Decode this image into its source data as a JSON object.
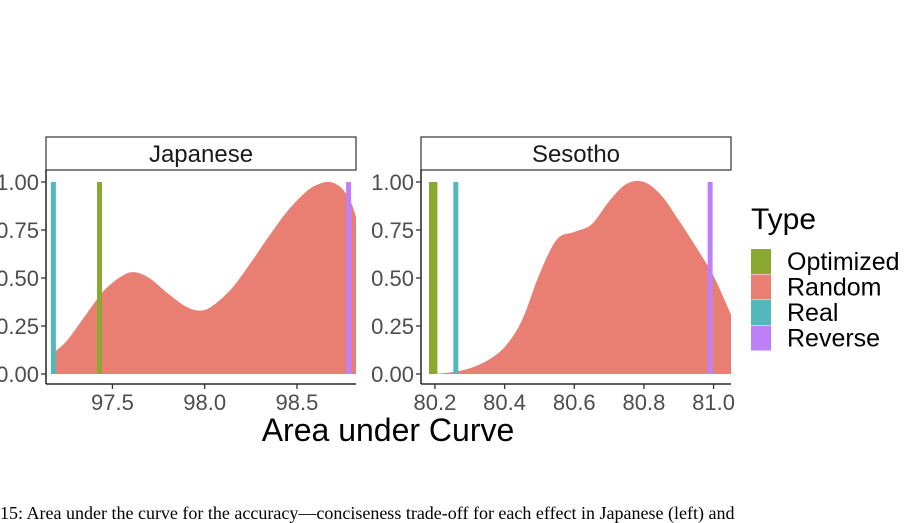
{
  "chart_data": [
    {
      "type": "area",
      "facet": "Japanese",
      "xlim": [
        97.14,
        98.82
      ],
      "ylim": [
        0,
        1
      ],
      "x_ticks": [
        97.5,
        98.0,
        98.5
      ],
      "x_tick_labels": [
        "97.5",
        "98.0",
        "98.5"
      ],
      "y_ticks": [
        0,
        0.25,
        0.5,
        0.75,
        1.0
      ],
      "y_tick_labels": [
        "0.00",
        "0.25",
        "0.50",
        "0.75",
        "1.00"
      ],
      "density": {
        "name": "Random",
        "x": [
          97.18,
          97.25,
          97.35,
          97.45,
          97.55,
          97.62,
          97.7,
          97.8,
          97.9,
          97.98,
          98.05,
          98.15,
          98.25,
          98.35,
          98.45,
          98.55,
          98.62,
          98.68,
          98.74,
          98.79,
          98.82
        ],
        "y": [
          0.11,
          0.17,
          0.3,
          0.43,
          0.51,
          0.53,
          0.5,
          0.42,
          0.35,
          0.33,
          0.36,
          0.45,
          0.58,
          0.72,
          0.85,
          0.95,
          0.99,
          1.0,
          0.97,
          0.9,
          0.82
        ]
      },
      "vlines": [
        {
          "type": "Real",
          "x": 97.18
        },
        {
          "type": "Optimized",
          "x": 97.43
        },
        {
          "type": "Reverse",
          "x": 98.78
        }
      ]
    },
    {
      "type": "area",
      "facet": "Sesotho",
      "xlim": [
        80.16,
        81.05
      ],
      "ylim": [
        0,
        1
      ],
      "x_ticks": [
        80.2,
        80.4,
        80.6,
        80.8,
        81.0
      ],
      "x_tick_labels": [
        "80.2",
        "80.4",
        "80.6",
        "80.8",
        "81.0"
      ],
      "y_ticks": [
        0,
        0.25,
        0.5,
        0.75,
        1.0
      ],
      "y_tick_labels": [
        "0.00",
        "0.25",
        "0.50",
        "0.75",
        "1.00"
      ],
      "density": {
        "name": "Random",
        "x": [
          80.2,
          80.25,
          80.3,
          80.35,
          80.4,
          80.45,
          80.5,
          80.55,
          80.6,
          80.65,
          80.7,
          80.75,
          80.8,
          80.85,
          80.9,
          80.95,
          81.0,
          81.05
        ],
        "y": [
          0.0,
          0.01,
          0.03,
          0.07,
          0.14,
          0.28,
          0.52,
          0.7,
          0.74,
          0.78,
          0.9,
          0.99,
          1.0,
          0.93,
          0.8,
          0.66,
          0.51,
          0.31
        ]
      },
      "vlines": [
        {
          "type": "Optimized",
          "x": 80.19
        },
        {
          "type": "Optimized",
          "x": 80.2
        },
        {
          "type": "Real",
          "x": 80.26
        },
        {
          "type": "Reverse",
          "x": 80.99
        }
      ]
    }
  ],
  "xlabel": "Area under Curve",
  "legend": {
    "title": "Type",
    "position": "right",
    "items": [
      {
        "label": "Optimized",
        "color": "#8BA832"
      },
      {
        "label": "Random",
        "color": "#E97E72"
      },
      {
        "label": "Real",
        "color": "#53B8BC"
      },
      {
        "label": "Reverse",
        "color": "#BE80F8"
      }
    ]
  },
  "colors": {
    "Optimized": "#8BA832",
    "Random": "#E97E72",
    "Real": "#53B8BC",
    "Reverse": "#BE80F8"
  },
  "caption": "15: Area under the curve for the accuracy—conciseness trade-off for each effect in Japanese (left) and"
}
